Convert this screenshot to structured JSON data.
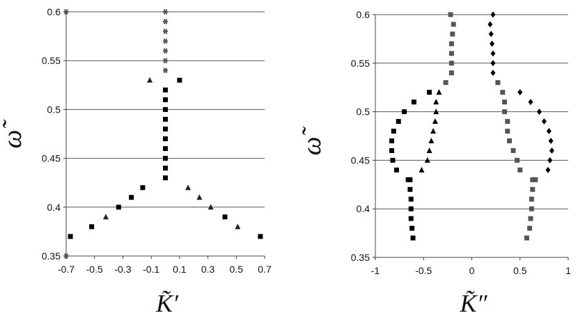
{
  "chart_data": [
    {
      "type": "scatter",
      "title": "",
      "xlabel": "K̃′",
      "ylabel": "ω̃",
      "xlim": [
        -0.7,
        0.7
      ],
      "ylim": [
        0.35,
        0.6
      ],
      "x_ticks": [
        "-0.7",
        "-0.5",
        "-0.3",
        "-0.1",
        "0.1",
        "0.3",
        "0.5",
        "0.7"
      ],
      "y_ticks": [
        "0.35",
        "0.4",
        "0.45",
        "0.5",
        "0.55",
        "0.6"
      ],
      "horizontal_grid": true,
      "legend": "none",
      "series": [
        {
          "marker": "square",
          "color": "#000000",
          "points": [
            [
              0,
              0.43
            ],
            [
              0,
              0.44
            ],
            [
              0,
              0.45
            ],
            [
              0,
              0.46
            ],
            [
              0,
              0.47
            ],
            [
              0,
              0.48
            ],
            [
              0,
              0.49
            ],
            [
              0,
              0.5
            ],
            [
              0,
              0.51
            ],
            [
              0,
              0.52
            ],
            [
              0.1,
              0.53
            ],
            [
              -0.16,
              0.42
            ],
            [
              -0.24,
              0.41
            ],
            [
              -0.33,
              0.4
            ],
            [
              -0.52,
              0.38
            ],
            [
              -0.67,
              0.37
            ],
            [
              0.42,
              0.39
            ],
            [
              0.67,
              0.37
            ]
          ]
        },
        {
          "marker": "triangle",
          "color": "#222222",
          "points": [
            [
              -0.11,
              0.53
            ],
            [
              0.16,
              0.42
            ],
            [
              0.24,
              0.41
            ],
            [
              0.32,
              0.4
            ],
            [
              -0.42,
              0.39
            ],
            [
              0.51,
              0.38
            ]
          ]
        },
        {
          "marker": "star",
          "color": "#555555",
          "points": [
            [
              0,
              0.54
            ],
            [
              0,
              0.55
            ],
            [
              0,
              0.56
            ],
            [
              0,
              0.57
            ],
            [
              0,
              0.58
            ],
            [
              0,
              0.59
            ],
            [
              0,
              0.6
            ],
            [
              -0.7,
              0.6
            ],
            [
              -0.7,
              0.35
            ]
          ]
        }
      ]
    },
    {
      "type": "scatter",
      "title": "",
      "xlabel": "K̃″",
      "ylabel": "ω̃",
      "xlim": [
        -1,
        1
      ],
      "ylim": [
        0.35,
        0.6
      ],
      "x_ticks": [
        "-1",
        "-0.5",
        "0",
        "0.5",
        "1"
      ],
      "y_ticks": [
        "0.35",
        "0.4",
        "0.45",
        "0.5",
        "0.55",
        "0.6"
      ],
      "horizontal_grid": true,
      "legend": "none",
      "series": [
        {
          "marker": "square",
          "color": "#000000",
          "points": [
            [
              -0.61,
              0.37
            ],
            [
              -0.62,
              0.38
            ],
            [
              -0.63,
              0.39
            ],
            [
              -0.63,
              0.4
            ],
            [
              -0.63,
              0.41
            ],
            [
              -0.64,
              0.42
            ],
            [
              -0.66,
              0.43
            ],
            [
              -0.64,
              0.43
            ],
            [
              -0.78,
              0.44
            ],
            [
              -0.82,
              0.45
            ],
            [
              -0.83,
              0.46
            ],
            [
              -0.83,
              0.47
            ],
            [
              -0.81,
              0.48
            ],
            [
              -0.76,
              0.49
            ],
            [
              -0.7,
              0.5
            ],
            [
              -0.6,
              0.51
            ],
            [
              -0.44,
              0.52
            ]
          ]
        },
        {
          "marker": "square",
          "color": "#555555",
          "points": [
            [
              -0.22,
              0.6
            ],
            [
              -0.19,
              0.59
            ],
            [
              -0.2,
              0.58
            ],
            [
              -0.21,
              0.57
            ],
            [
              -0.21,
              0.56
            ],
            [
              -0.21,
              0.55
            ],
            [
              -0.21,
              0.54
            ],
            [
              -0.27,
              0.53
            ],
            [
              0.27,
              0.53
            ],
            [
              0.32,
              0.52
            ],
            [
              0.34,
              0.51
            ],
            [
              0.34,
              0.5
            ],
            [
              0.37,
              0.49
            ],
            [
              0.37,
              0.48
            ],
            [
              0.39,
              0.47
            ],
            [
              0.43,
              0.46
            ],
            [
              0.47,
              0.45
            ],
            [
              0.5,
              0.44
            ],
            [
              0.63,
              0.43
            ],
            [
              0.66,
              0.43
            ],
            [
              0.63,
              0.42
            ],
            [
              0.62,
              0.41
            ],
            [
              0.62,
              0.4
            ],
            [
              0.61,
              0.39
            ],
            [
              0.6,
              0.38
            ],
            [
              0.57,
              0.37
            ]
          ]
        },
        {
          "marker": "triangle",
          "color": "#000000",
          "points": [
            [
              -0.34,
              0.52
            ],
            [
              -0.37,
              0.51
            ],
            [
              -0.37,
              0.5
            ],
            [
              -0.38,
              0.49
            ],
            [
              -0.4,
              0.48
            ],
            [
              -0.42,
              0.47
            ],
            [
              -0.44,
              0.46
            ],
            [
              -0.46,
              0.45
            ],
            [
              -0.52,
              0.44
            ]
          ]
        },
        {
          "marker": "diamond",
          "color": "#000000",
          "points": [
            [
              0.22,
              0.6
            ],
            [
              0.19,
              0.59
            ],
            [
              0.2,
              0.58
            ],
            [
              0.21,
              0.57
            ],
            [
              0.22,
              0.56
            ],
            [
              0.22,
              0.55
            ],
            [
              0.22,
              0.54
            ],
            [
              0.5,
              0.52
            ],
            [
              0.61,
              0.51
            ],
            [
              0.7,
              0.5
            ],
            [
              0.75,
              0.49
            ],
            [
              0.8,
              0.48
            ],
            [
              0.82,
              0.47
            ],
            [
              0.83,
              0.46
            ],
            [
              0.81,
              0.45
            ],
            [
              0.79,
              0.44
            ]
          ]
        }
      ]
    }
  ]
}
